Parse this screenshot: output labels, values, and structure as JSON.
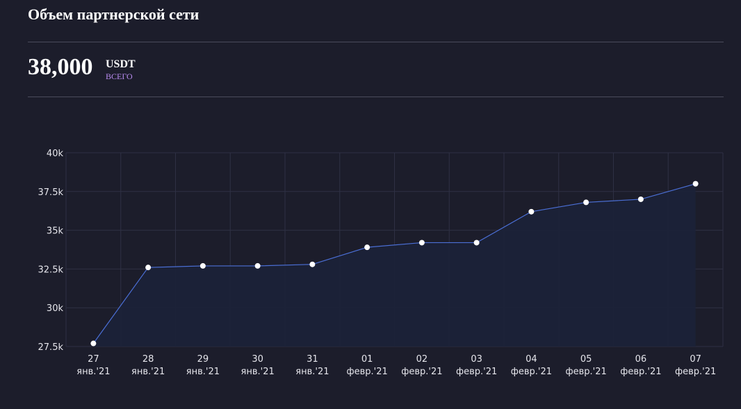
{
  "header": {
    "title": "Объем партнерской сети",
    "total": "38,000",
    "unit": "USDT",
    "caption": "ВСЕГО"
  },
  "chart_data": {
    "type": "line",
    "categories": [
      [
        "27",
        "янв.'21"
      ],
      [
        "28",
        "янв.'21"
      ],
      [
        "29",
        "янв.'21"
      ],
      [
        "30",
        "янв.'21"
      ],
      [
        "31",
        "янв.'21"
      ],
      [
        "01",
        "февр.'21"
      ],
      [
        "02",
        "февр.'21"
      ],
      [
        "03",
        "февр.'21"
      ],
      [
        "04",
        "февр.'21"
      ],
      [
        "05",
        "февр.'21"
      ],
      [
        "06",
        "февр.'21"
      ],
      [
        "07",
        "февр.'21"
      ]
    ],
    "values": [
      27700,
      32600,
      32700,
      32700,
      32800,
      33900,
      34200,
      34200,
      36200,
      36800,
      37000,
      38000
    ],
    "color": "#4b6fd6",
    "area_color": "#1b2238",
    "point_color": "#ffffff",
    "ylim": [
      27500,
      40000
    ],
    "yticks": [
      {
        "value": 27500,
        "label": "27.5k"
      },
      {
        "value": 30000,
        "label": "30k"
      },
      {
        "value": 32500,
        "label": "32.5k"
      },
      {
        "value": 35000,
        "label": "35k"
      },
      {
        "value": 37500,
        "label": "37.5k"
      },
      {
        "value": 40000,
        "label": "40k"
      }
    ],
    "grid": true
  }
}
